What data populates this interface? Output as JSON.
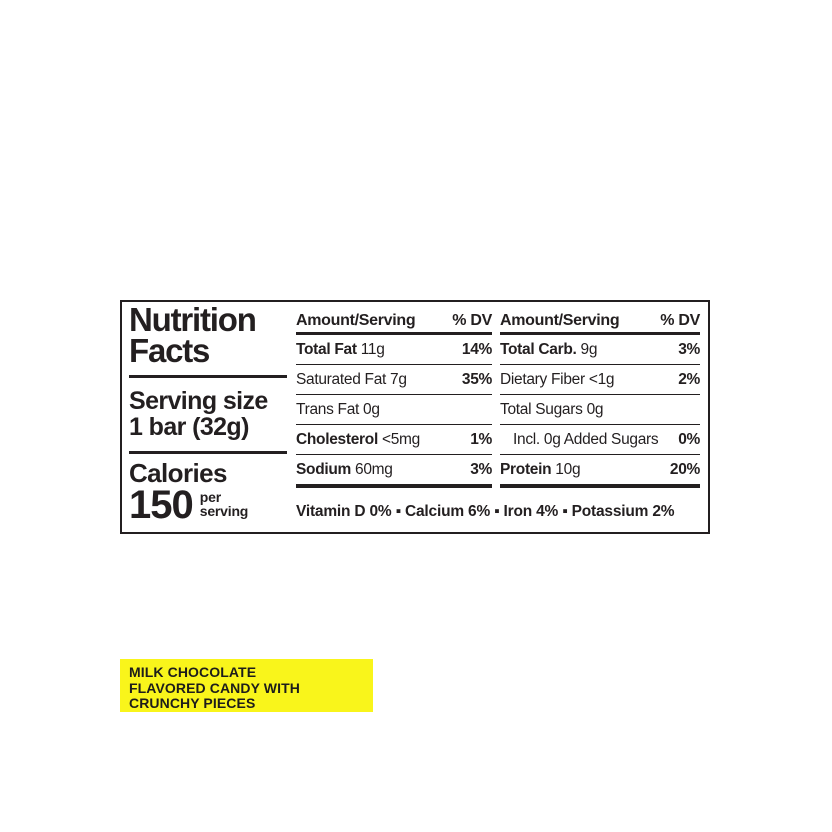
{
  "page": {
    "background": "#ffffff"
  },
  "colors": {
    "ink": "#231f20",
    "banner_bg": "#F9F51B",
    "banner_text": "#1d1d1b"
  },
  "nutrition_label": {
    "title_line1": "Nutrition",
    "title_line2": "Facts",
    "serving_size_label": "Serving size",
    "serving_size_value": "1 bar (32g)",
    "calories_label": "Calories",
    "calories_value": "150",
    "calories_unit_line1": "per",
    "calories_unit_line2": "serving",
    "columns": [
      {
        "header_amount": "Amount/Serving",
        "header_dv": "% DV",
        "rows": [
          {
            "bold": "Total Fat",
            "rest": "11g",
            "dv": "14%"
          },
          {
            "bold": "",
            "rest": "Saturated Fat 7g",
            "dv": "35%"
          },
          {
            "bold": "",
            "rest": "Trans Fat 0g",
            "dv": ""
          },
          {
            "bold": "Cholesterol",
            "rest": "<5mg",
            "dv": "1%"
          },
          {
            "bold": "Sodium",
            "rest": "60mg",
            "dv": "3%"
          }
        ]
      },
      {
        "header_amount": "Amount/Serving",
        "header_dv": "% DV",
        "rows": [
          {
            "bold": "Total Carb.",
            "rest": "9g",
            "dv": "3%"
          },
          {
            "bold": "",
            "rest": "Dietary Fiber <1g",
            "dv": "2%"
          },
          {
            "bold": "",
            "rest": "Total Sugars 0g",
            "dv": ""
          },
          {
            "bold": "",
            "rest": "Incl. 0g Added Sugars",
            "dv": "0%",
            "indent": true
          },
          {
            "bold": "Protein",
            "rest": "10g",
            "dv": "20%"
          }
        ]
      }
    ],
    "micronutrients": "Vitamin D 0% ▪ Calcium 6% ▪ Iron 4% ▪ Potassium 2%"
  },
  "banner": {
    "lines": [
      "MILK CHOCOLATE",
      "FLAVORED CANDY WITH",
      "CRUNCHY PIECES"
    ]
  }
}
